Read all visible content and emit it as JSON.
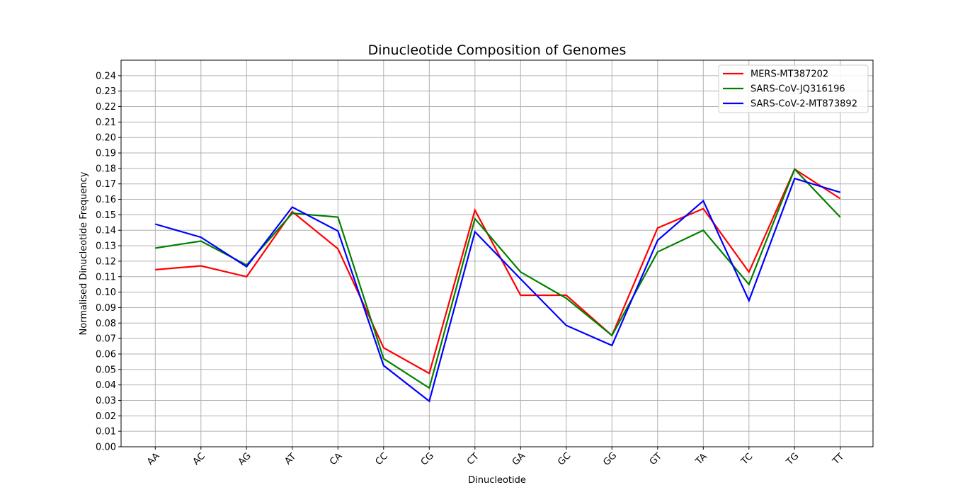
{
  "chart_data": {
    "type": "line",
    "title": "Dinucleotide Composition of Genomes",
    "xlabel": "Dinucleotide",
    "ylabel": "Normalised Dinucleotide Frequency",
    "categories": [
      "AA",
      "AC",
      "AG",
      "AT",
      "CA",
      "CC",
      "CG",
      "CT",
      "GA",
      "GC",
      "GG",
      "GT",
      "TA",
      "TC",
      "TG",
      "TT"
    ],
    "ylim": [
      0,
      0.25
    ],
    "yticks": [
      "0.00",
      "0.01",
      "0.02",
      "0.03",
      "0.04",
      "0.05",
      "0.06",
      "0.07",
      "0.08",
      "0.09",
      "0.10",
      "0.11",
      "0.12",
      "0.13",
      "0.14",
      "0.15",
      "0.16",
      "0.17",
      "0.18",
      "0.19",
      "0.20",
      "0.21",
      "0.22",
      "0.23",
      "0.24"
    ],
    "grid": true,
    "legend_position": "top-right",
    "series": [
      {
        "name": "MERS-MT387202",
        "color": "#ff0000",
        "values": [
          0.1145,
          0.117,
          0.11,
          0.152,
          0.128,
          0.064,
          0.0475,
          0.153,
          0.098,
          0.098,
          0.072,
          0.1415,
          0.154,
          0.113,
          0.1795,
          0.1605
        ]
      },
      {
        "name": "SARS-CoV-JQ316196",
        "color": "#008000",
        "values": [
          0.1285,
          0.133,
          0.1175,
          0.151,
          0.1485,
          0.057,
          0.038,
          0.1475,
          0.113,
          0.096,
          0.072,
          0.126,
          0.14,
          0.105,
          0.1795,
          0.1485
        ]
      },
      {
        "name": "SARS-CoV-2-MT873892",
        "color": "#0000ff",
        "values": [
          0.144,
          0.1355,
          0.1165,
          0.155,
          0.1395,
          0.0525,
          0.0295,
          0.139,
          0.1085,
          0.0785,
          0.0655,
          0.1335,
          0.159,
          0.0945,
          0.1735,
          0.1645
        ]
      }
    ]
  }
}
